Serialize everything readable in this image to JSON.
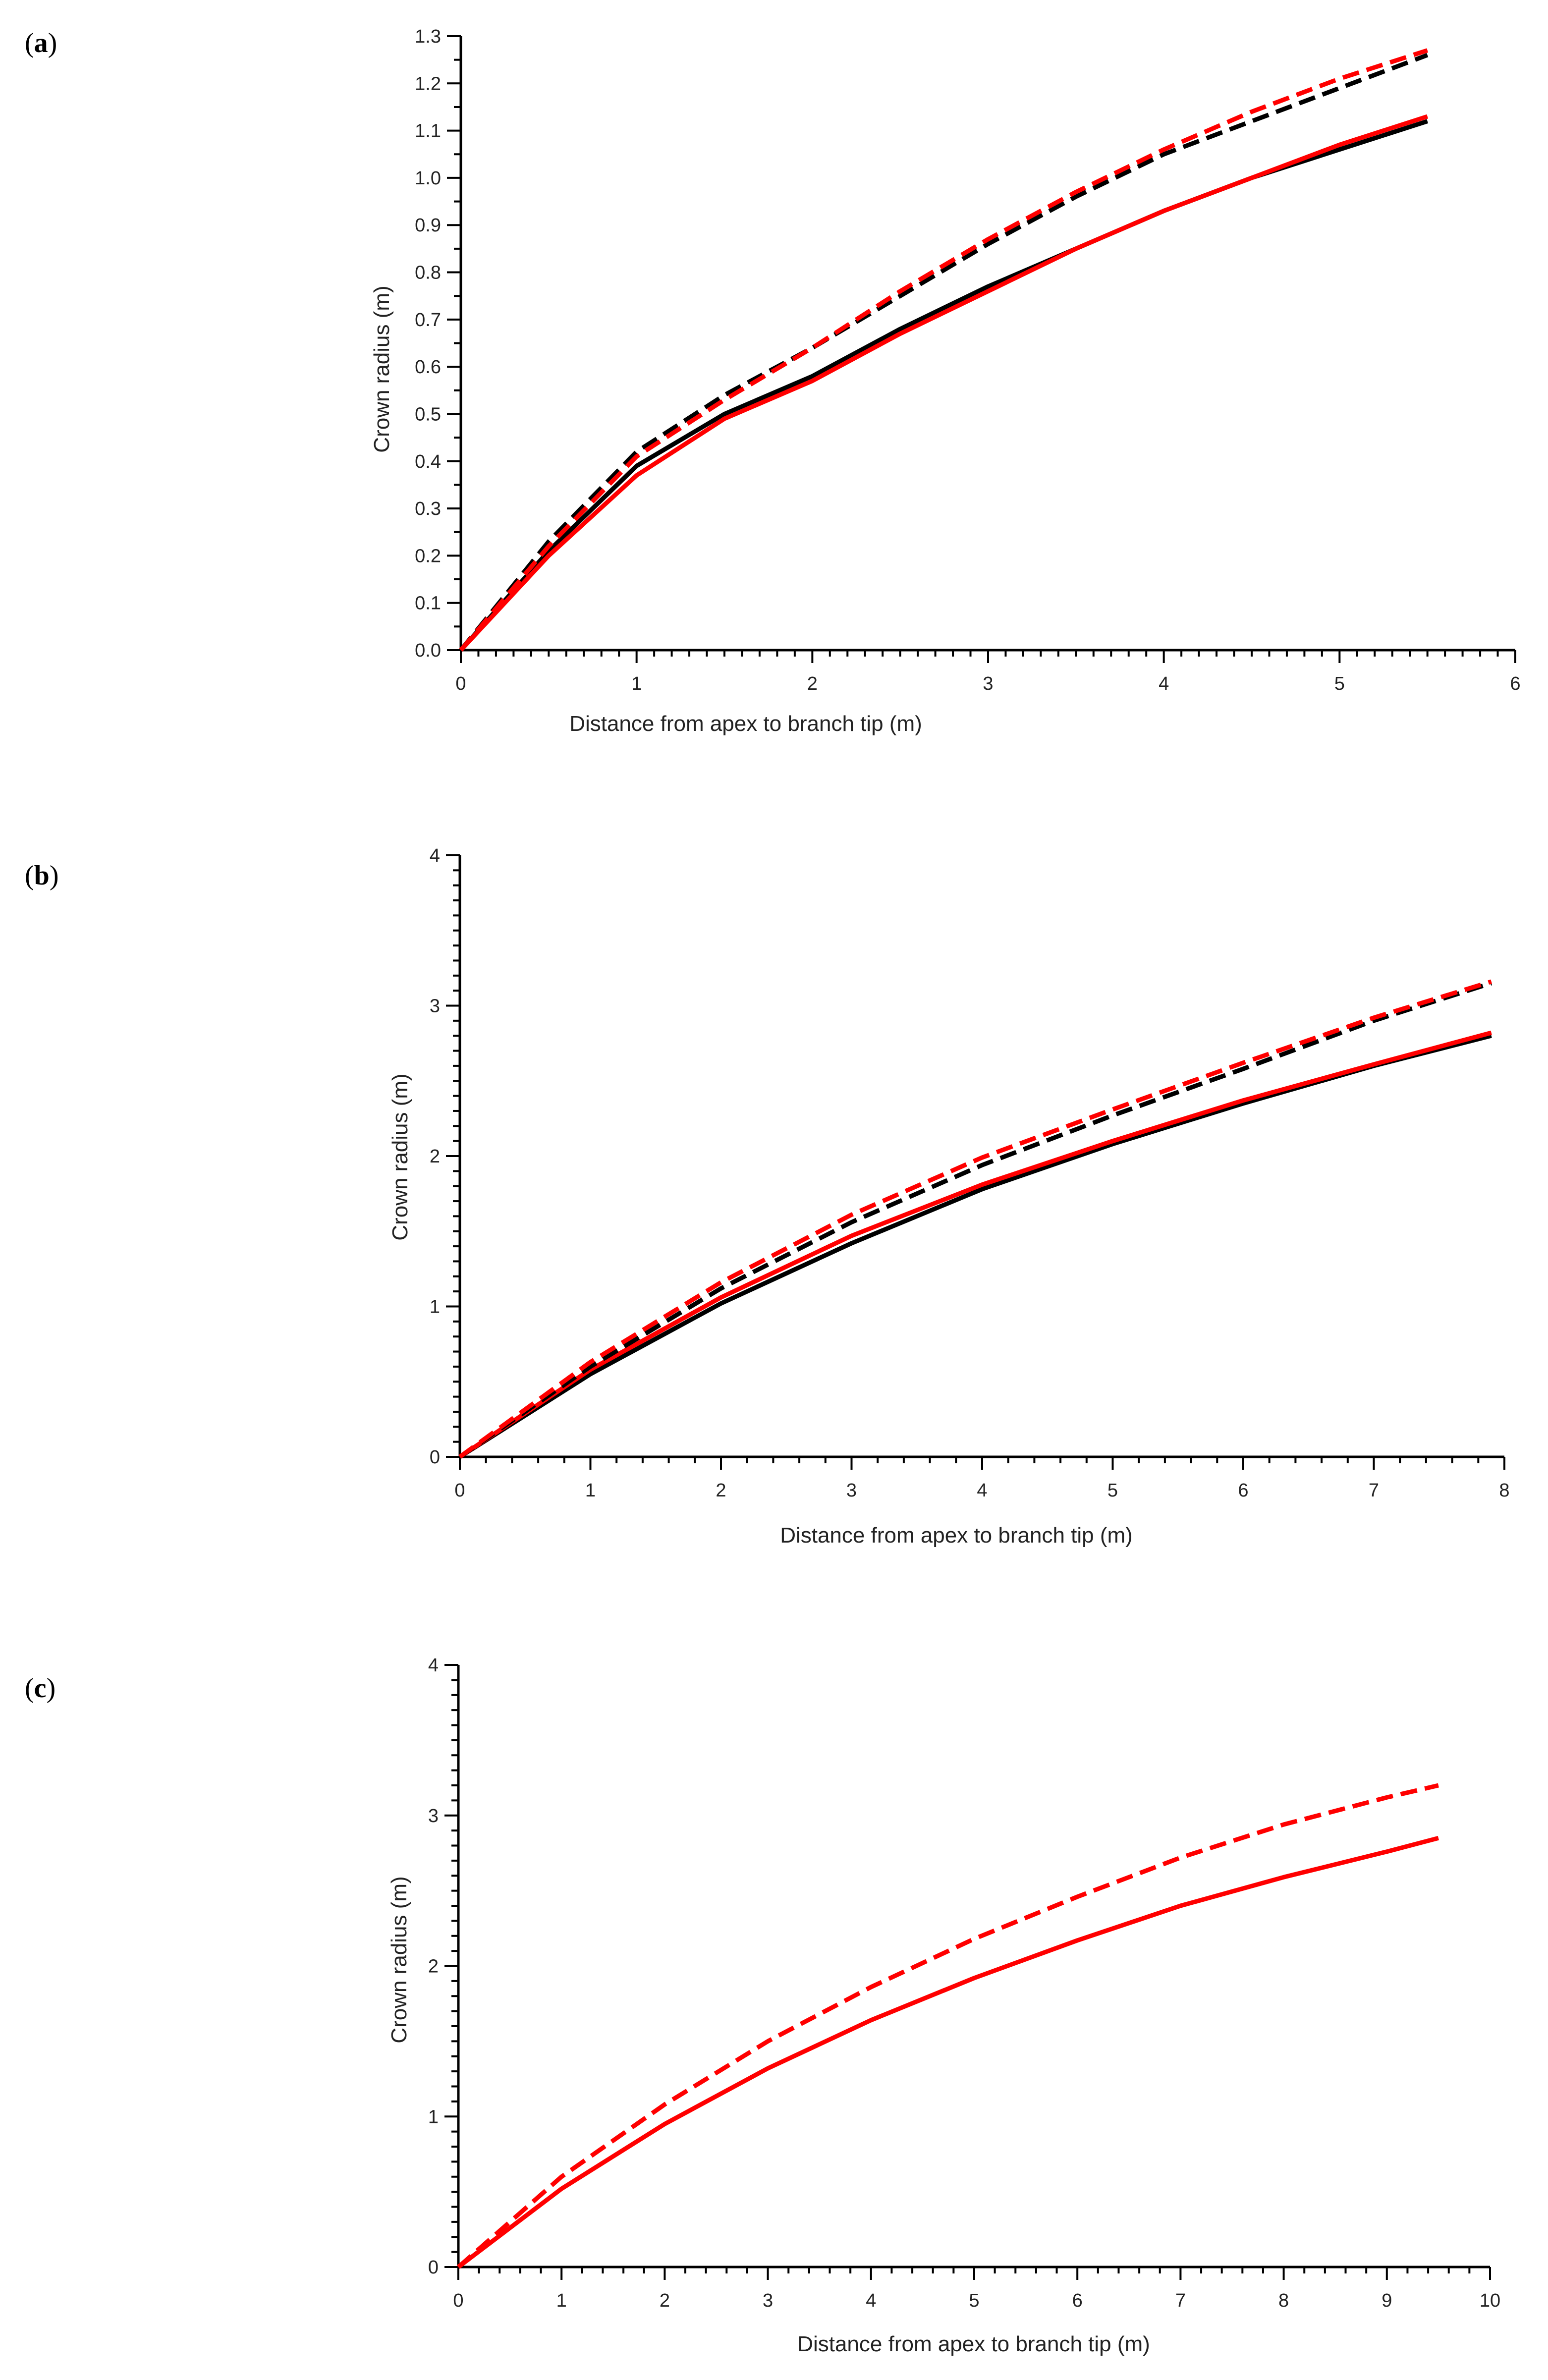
{
  "chart_data": [
    {
      "type": "line",
      "panel_label": "(a)",
      "panel_letter": "a",
      "xlabel": "Distance from apex to branch tip (m)",
      "ylabel": "Crown radius (m)",
      "xlim": [
        0,
        6
      ],
      "ylim": [
        0,
        1.3
      ],
      "x_ticks": [
        "0",
        "1",
        "2",
        "3",
        "4",
        "5",
        "6"
      ],
      "y_ticks": [
        "0.0",
        "0.1",
        "0.2",
        "0.3",
        "0.4",
        "0.5",
        "0.6",
        "0.7",
        "0.8",
        "0.9",
        "1.0",
        "1.1",
        "1.2",
        "1.3"
      ],
      "grid": false,
      "legend": "none",
      "series": [
        {
          "color": "#000000",
          "style": "solid",
          "x": [
            0,
            0.5,
            1,
            1.5,
            2,
            2.5,
            3,
            3.5,
            4,
            4.5,
            5,
            5.5
          ],
          "y": [
            0,
            0.21,
            0.39,
            0.5,
            0.58,
            0.68,
            0.77,
            0.85,
            0.93,
            1.0,
            1.06,
            1.12
          ]
        },
        {
          "color": "#ff0000",
          "style": "solid",
          "x": [
            0,
            0.5,
            1,
            1.5,
            2,
            2.5,
            3,
            3.5,
            4,
            4.5,
            5,
            5.5
          ],
          "y": [
            0,
            0.2,
            0.37,
            0.49,
            0.57,
            0.67,
            0.76,
            0.85,
            0.93,
            1.0,
            1.07,
            1.13
          ]
        },
        {
          "color": "#000000",
          "style": "dashed",
          "x": [
            0,
            0.5,
            1,
            1.5,
            2,
            2.5,
            3,
            3.5,
            4,
            4.5,
            5,
            5.5
          ],
          "y": [
            0,
            0.23,
            0.42,
            0.54,
            0.64,
            0.75,
            0.86,
            0.96,
            1.05,
            1.12,
            1.19,
            1.26
          ]
        },
        {
          "color": "#ff0000",
          "style": "dashed",
          "x": [
            0,
            0.5,
            1,
            1.5,
            2,
            2.5,
            3,
            3.5,
            4,
            4.5,
            5,
            5.5
          ],
          "y": [
            0,
            0.22,
            0.41,
            0.53,
            0.64,
            0.76,
            0.87,
            0.97,
            1.06,
            1.14,
            1.21,
            1.27
          ]
        }
      ]
    },
    {
      "type": "line",
      "panel_label": "(b)",
      "panel_letter": "b",
      "xlabel": "Distance from apex to branch tip (m)",
      "ylabel": "Crown radius (m)",
      "xlim": [
        0,
        8
      ],
      "ylim": [
        0,
        4
      ],
      "x_ticks": [
        "0",
        "1",
        "2",
        "3",
        "4",
        "5",
        "6",
        "7",
        "8"
      ],
      "y_ticks": [
        "0",
        "1",
        "2",
        "3",
        "4"
      ],
      "grid": false,
      "legend": "none",
      "series": [
        {
          "color": "#000000",
          "style": "solid",
          "x": [
            0,
            1,
            2,
            3,
            4,
            5,
            6,
            7,
            7.9
          ],
          "y": [
            0,
            0.55,
            1.02,
            1.42,
            1.78,
            2.08,
            2.35,
            2.6,
            2.8
          ]
        },
        {
          "color": "#ff0000",
          "style": "solid",
          "x": [
            0,
            1,
            2,
            3,
            4,
            5,
            6,
            7,
            7.9
          ],
          "y": [
            0,
            0.58,
            1.06,
            1.47,
            1.81,
            2.1,
            2.37,
            2.61,
            2.82
          ]
        },
        {
          "color": "#000000",
          "style": "dashed",
          "x": [
            0,
            1,
            2,
            3,
            4,
            5,
            6,
            7,
            7.9
          ],
          "y": [
            0,
            0.6,
            1.12,
            1.56,
            1.94,
            2.27,
            2.58,
            2.9,
            3.15
          ]
        },
        {
          "color": "#ff0000",
          "style": "dashed",
          "x": [
            0,
            1,
            2,
            3,
            4,
            5,
            6,
            7,
            7.9
          ],
          "y": [
            0,
            0.63,
            1.16,
            1.61,
            1.99,
            2.31,
            2.62,
            2.92,
            3.16
          ]
        }
      ]
    },
    {
      "type": "line",
      "panel_label": "(c)",
      "panel_letter": "c",
      "xlabel": "Distance from apex to branch tip (m)",
      "ylabel": "Crown radius (m)",
      "xlim": [
        0,
        10
      ],
      "ylim": [
        0,
        4
      ],
      "x_ticks": [
        "0",
        "1",
        "2",
        "3",
        "4",
        "5",
        "6",
        "7",
        "8",
        "9",
        "10"
      ],
      "y_ticks": [
        "0",
        "1",
        "2",
        "3",
        "4"
      ],
      "grid": false,
      "legend": "none",
      "series": [
        {
          "color": "#ff0000",
          "style": "solid",
          "x": [
            0,
            1,
            2,
            3,
            4,
            5,
            6,
            7,
            8,
            9,
            9.5
          ],
          "y": [
            0,
            0.52,
            0.95,
            1.32,
            1.64,
            1.92,
            2.17,
            2.4,
            2.59,
            2.76,
            2.85
          ]
        },
        {
          "color": "#ff0000",
          "style": "dashed",
          "x": [
            0,
            1,
            2,
            3,
            4,
            5,
            6,
            7,
            8,
            9,
            9.5
          ],
          "y": [
            0,
            0.6,
            1.08,
            1.5,
            1.86,
            2.18,
            2.46,
            2.72,
            2.94,
            3.12,
            3.2
          ]
        }
      ]
    }
  ]
}
